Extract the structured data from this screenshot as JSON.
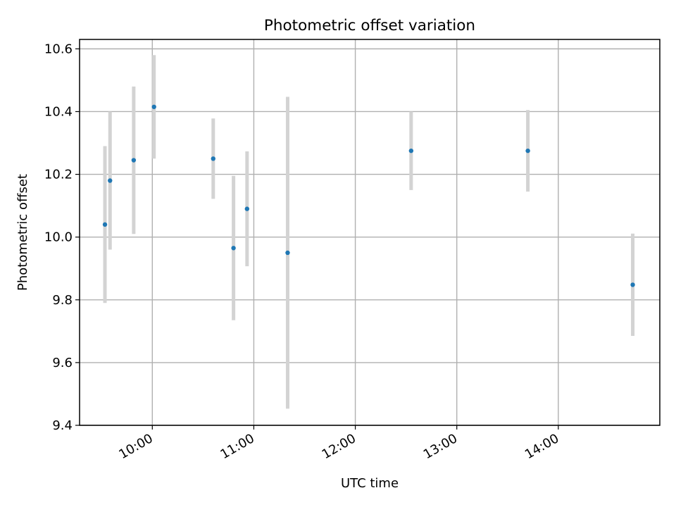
{
  "chart_data": {
    "type": "scatter",
    "title": "Photometric offset variation",
    "xlabel": "UTC time",
    "ylabel": "Photometric offset",
    "x_ticks": [
      "10:00",
      "11:00",
      "12:00",
      "13:00",
      "14:00"
    ],
    "y_ticks": [
      "9.4",
      "9.6",
      "9.8",
      "10.0",
      "10.2",
      "10.4",
      "10.6"
    ],
    "xlim": [
      "09:17",
      "15:00"
    ],
    "ylim": [
      9.4,
      10.63
    ],
    "grid": true,
    "colors": {
      "marker": "#1f77b4",
      "errorbar": "#d3d3d3",
      "grid": "#b0b0b0"
    },
    "points": [
      {
        "time": "09:32",
        "y": 10.04,
        "yerr": 0.25
      },
      {
        "time": "09:35",
        "y": 10.18,
        "yerr": 0.22
      },
      {
        "time": "09:49",
        "y": 10.245,
        "yerr": 0.235
      },
      {
        "time": "10:01",
        "y": 10.415,
        "yerr": 0.165
      },
      {
        "time": "10:36",
        "y": 10.25,
        "yerr": 0.128
      },
      {
        "time": "10:48",
        "y": 9.965,
        "yerr": 0.23
      },
      {
        "time": "10:56",
        "y": 10.09,
        "yerr": 0.183
      },
      {
        "time": "11:20",
        "y": 9.95,
        "yerr": 0.497
      },
      {
        "time": "12:33",
        "y": 10.275,
        "yerr": 0.125
      },
      {
        "time": "13:42",
        "y": 10.275,
        "yerr": 0.13
      },
      {
        "time": "14:44",
        "y": 9.848,
        "yerr": 0.163
      }
    ]
  }
}
